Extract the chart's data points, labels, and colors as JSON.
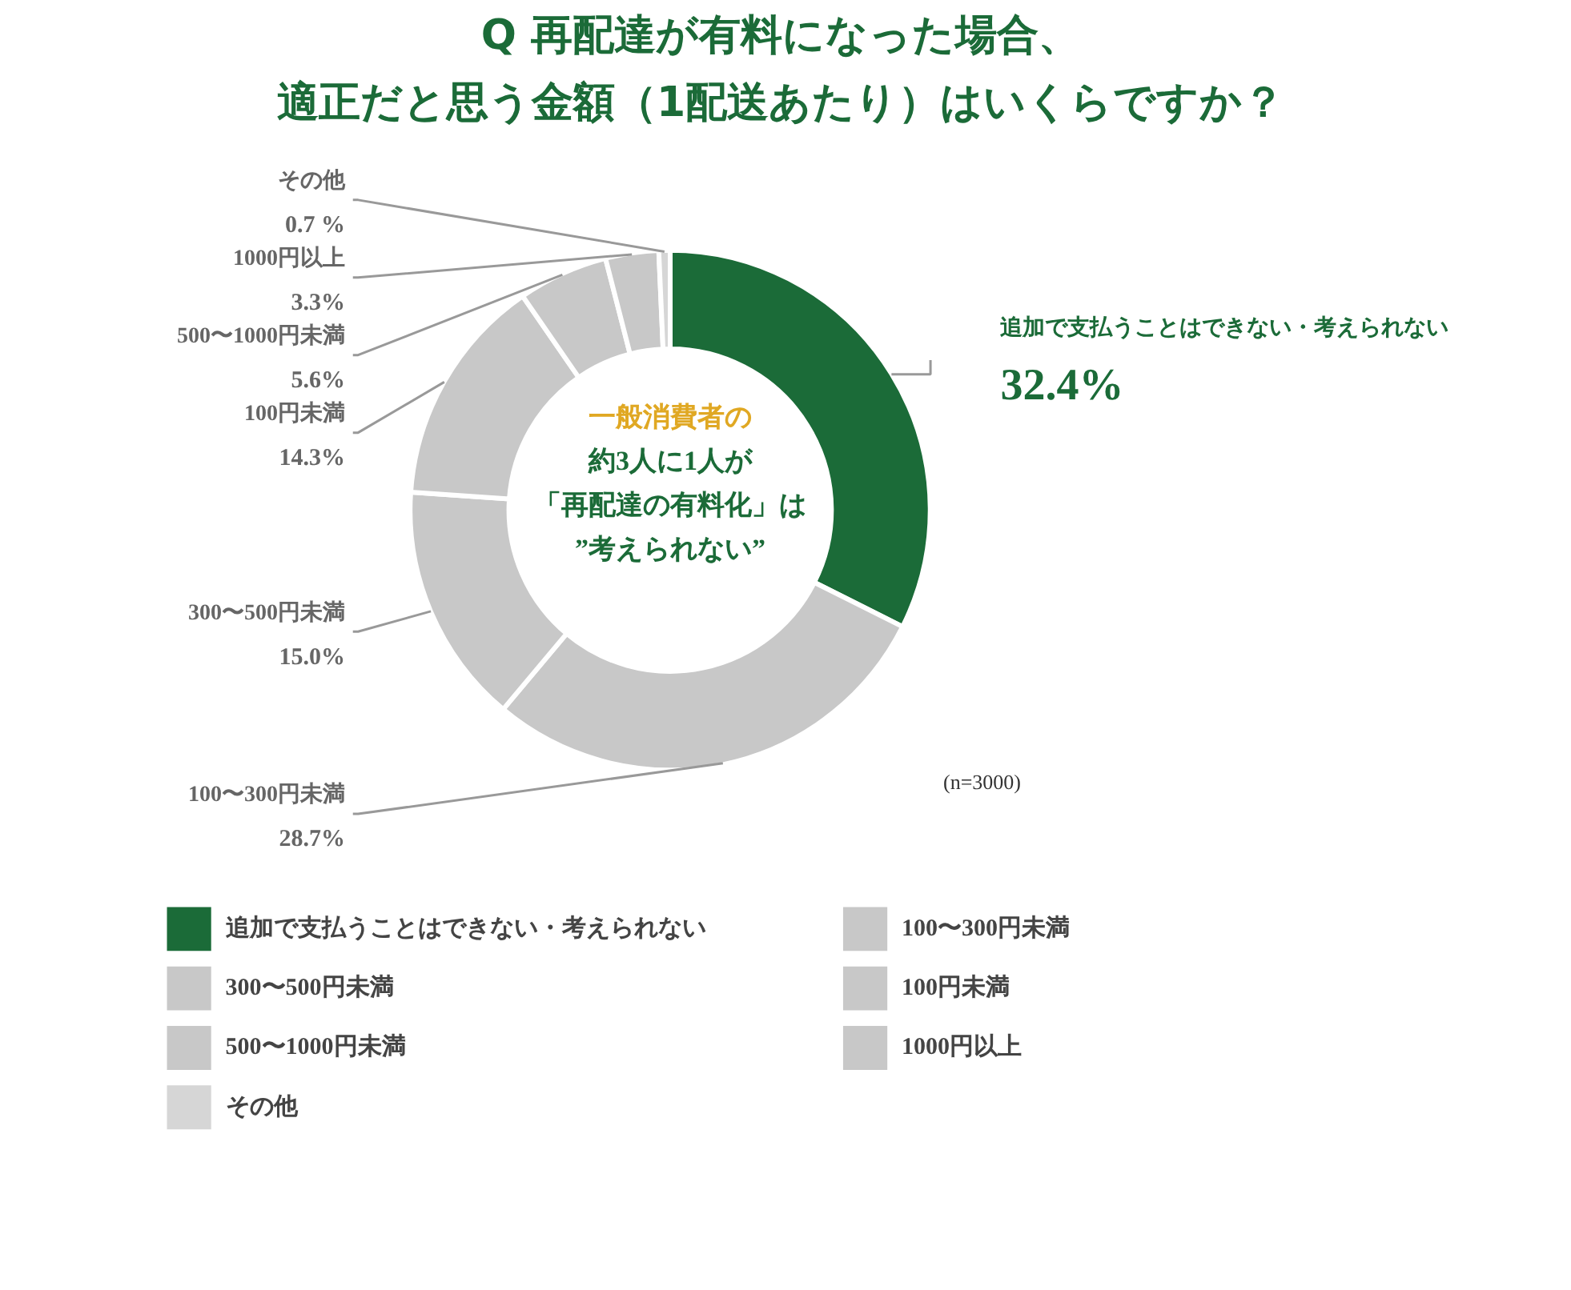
{
  "chart_data": {
    "type": "donut",
    "title": "Q 再配達が有料になった場合、",
    "subtitle": "適正だと思う金額（1配送あたり）はいくらですか？",
    "categories": [
      "追加で支払うことはできない・考えられない",
      "100〜300円未満",
      "300〜500円未満",
      "100円未満",
      "500〜1000円未満",
      "1000円以上",
      "その他"
    ],
    "values": [
      32.4,
      28.7,
      15.0,
      14.3,
      5.6,
      3.3,
      0.7
    ],
    "colors": [
      "#1b6b38",
      "#c8c8c8",
      "#c8c8c8",
      "#c8c8c8",
      "#c8c8c8",
      "#c8c8c8",
      "#d6d6d6"
    ],
    "value_labels": [
      "32.4%",
      "28.7%",
      "15.0%",
      "14.3%",
      "5.6%",
      "3.3%",
      "0.7 %"
    ],
    "annotations": [
      "一般消費者の",
      "約3人に1人が",
      "「再配達の有料化」は",
      "”考えられない”",
      "(n=3000)"
    ],
    "legend": "bottom"
  }
}
